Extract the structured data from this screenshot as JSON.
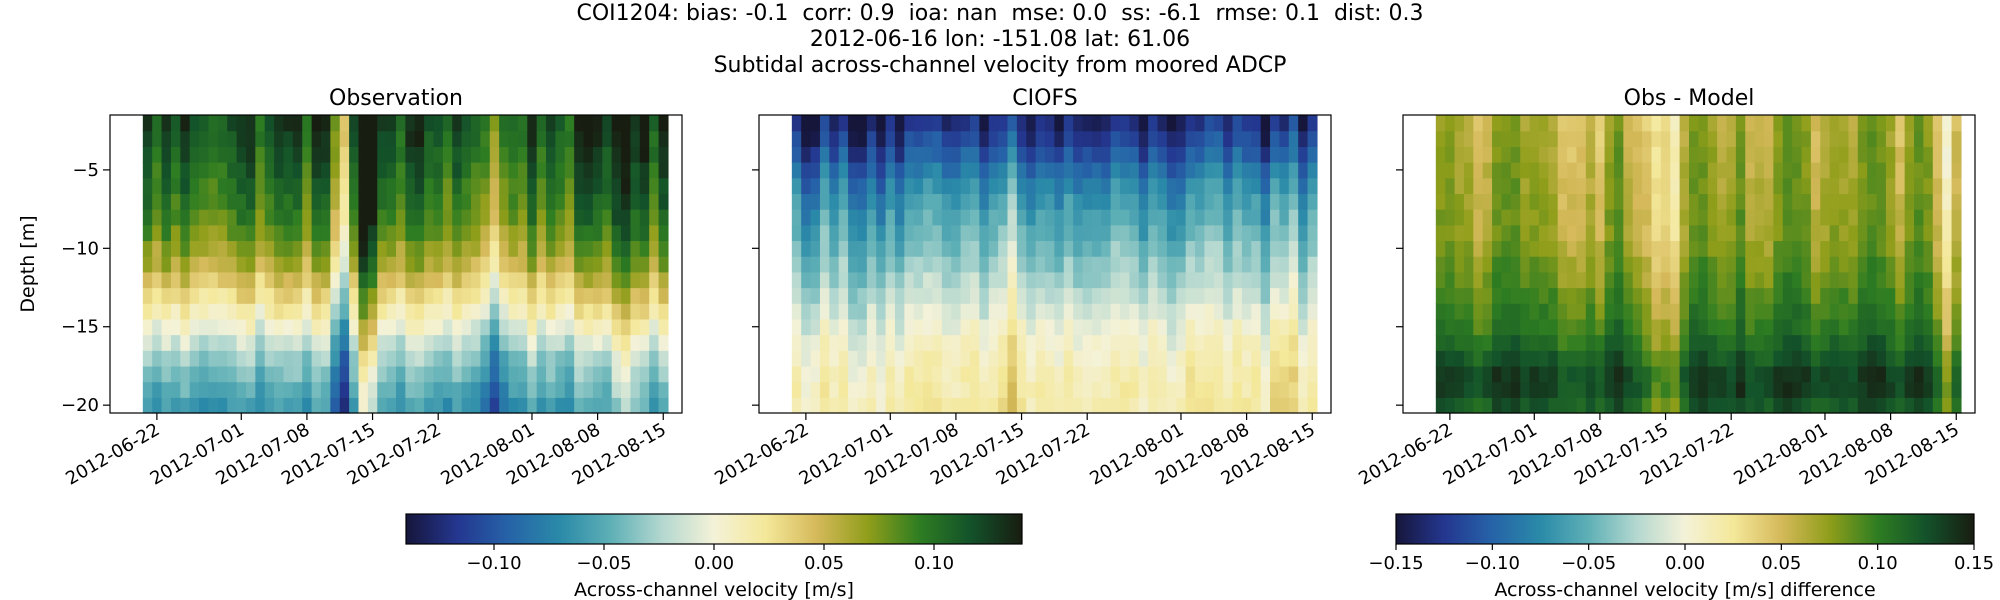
{
  "figure": {
    "title_line1": "COI1204: bias: -0.1  corr: 0.9  ioa: nan  mse: 0.0  ss: -6.1  rmse: 0.1  dist: 0.3",
    "title_line2": "2012-06-16 lon: -151.08 lat: 61.06",
    "title_line3": "Subtidal across-channel velocity from moored ADCP"
  },
  "colors": {
    "colormap": [
      "#16163b",
      "#24368f",
      "#2663a8",
      "#2a8aa8",
      "#5fb0b6",
      "#b4d8d0",
      "#f4f2d8",
      "#f4e89a",
      "#d5b95a",
      "#8f9e1a",
      "#2e7d22",
      "#13522a",
      "#181d11"
    ]
  },
  "chart_data": [
    {
      "type": "heatmap",
      "title": "Observation",
      "ylabel": "Depth [m]",
      "xlabel": "",
      "x_range": [
        "2012-06-17",
        "2012-08-17"
      ],
      "y_range": [
        -20.5,
        -1.5
      ],
      "xticks": [
        "2012-06-22",
        "2012-07-01",
        "2012-07-08",
        "2012-07-15",
        "2012-07-22",
        "2012-08-01",
        "2012-08-08",
        "2012-08-15"
      ],
      "yticks": [
        -5,
        -10,
        -15,
        -20
      ],
      "ytick_labels": [
        "−5",
        "−10",
        "−15",
        "−20"
      ],
      "depth_bins_m": [
        -20,
        -19,
        -18,
        -17,
        -16,
        -15,
        -14,
        -13,
        -12,
        -11,
        -10,
        -9,
        -8,
        -7,
        -6,
        -5,
        -4,
        -3,
        -2
      ],
      "time_step_days": 1,
      "depth_profile_m_per_s": [
        -0.06,
        -0.05,
        -0.04,
        -0.03,
        -0.015,
        0.0,
        0.015,
        0.03,
        0.045,
        0.06,
        0.07,
        0.08,
        0.09,
        0.095,
        0.1,
        0.105,
        0.11,
        0.115,
        0.12
      ],
      "features": [
        {
          "date": "2012-07-14",
          "delta_m_per_s": 0.06,
          "description": "dark vertical streak spanning the full depth"
        },
        {
          "date": "2012-07-12",
          "delta_m_per_s": -0.06,
          "description": "light yellow streak near surface"
        },
        {
          "date": "2012-07-28",
          "delta_m_per_s": -0.05,
          "description": "lighter band"
        },
        {
          "date": "2012-08-11",
          "delta_m_per_s": 0.05,
          "description": "darker streak"
        }
      ],
      "colorbar": "shared-left"
    },
    {
      "type": "heatmap",
      "title": "CIOFS",
      "ylabel": "",
      "xlabel": "",
      "x_range": [
        "2012-06-17",
        "2012-08-17"
      ],
      "y_range": [
        -20.5,
        -1.5
      ],
      "xticks": [
        "2012-06-22",
        "2012-07-01",
        "2012-07-08",
        "2012-07-15",
        "2012-07-22",
        "2012-08-01",
        "2012-08-08",
        "2012-08-15"
      ],
      "yticks": [
        -5,
        -10,
        -15,
        -20
      ],
      "ytick_labels": [],
      "depth_bins_m": [
        -20,
        -19,
        -18,
        -17,
        -16,
        -15,
        -14,
        -13,
        -12,
        -11,
        -10,
        -9,
        -8,
        -7,
        -6,
        -5,
        -4,
        -3,
        -2
      ],
      "time_step_days": 1,
      "depth_profile_m_per_s": [
        0.014,
        0.012,
        0.01,
        0.005,
        0.0,
        -0.006,
        -0.014,
        -0.022,
        -0.03,
        -0.038,
        -0.045,
        -0.052,
        -0.06,
        -0.068,
        -0.078,
        -0.09,
        -0.105,
        -0.118,
        -0.13
      ],
      "features": [
        {
          "date": "2012-07-14",
          "delta_m_per_s": 0.03,
          "description": "warm bulge rising to about -15 m"
        },
        {
          "date": "2012-08-12",
          "delta_m_per_s": 0.03,
          "description": "warm bulge rising to about -15 m"
        },
        {
          "date": "2012-08-02",
          "delta_m_per_s": 0.015,
          "description": "weak bulge near bottom"
        }
      ],
      "colorbar": "shared-left"
    },
    {
      "type": "heatmap",
      "title": "Obs - Model",
      "ylabel": "",
      "xlabel": "",
      "x_range": [
        "2012-06-17",
        "2012-08-17"
      ],
      "y_range": [
        -20.5,
        -1.5
      ],
      "xticks": [
        "2012-06-22",
        "2012-07-01",
        "2012-07-08",
        "2012-07-15",
        "2012-07-22",
        "2012-08-01",
        "2012-08-08",
        "2012-08-15"
      ],
      "yticks": [
        -5,
        -10,
        -15,
        -20
      ],
      "ytick_labels": [],
      "depth_bins_m": [
        -20,
        -19,
        -18,
        -17,
        -16,
        -15,
        -14,
        -13,
        -12,
        -11,
        -10,
        -9,
        -8,
        -7,
        -6,
        -5,
        -4,
        -3,
        -2
      ],
      "time_step_days": 1,
      "depth_profile_m_per_s": [
        0.12,
        0.13,
        0.13,
        0.12,
        0.11,
        0.1,
        0.095,
        0.09,
        0.085,
        0.08,
        0.075,
        0.07,
        0.07,
        0.068,
        0.066,
        0.065,
        0.064,
        0.062,
        0.06
      ],
      "features": [
        {
          "date": "2012-07-14",
          "delta_m_per_s": -0.04,
          "description": "yellow vertical streak"
        },
        {
          "date": "2012-07-16",
          "delta_m_per_s": -0.03,
          "description": "yellow vertical streak"
        },
        {
          "date": "2012-08-14",
          "delta_m_per_s": -0.04,
          "description": "yellow streak near surface"
        }
      ],
      "colorbar": "right"
    }
  ],
  "colorbars": [
    {
      "for": "Observation, CIOFS",
      "vmin": -0.14,
      "vmax": 0.14,
      "ticks": [
        -0.1,
        -0.05,
        0.0,
        0.05,
        0.1
      ],
      "tick_labels": [
        "−0.10",
        "−0.05",
        "0.00",
        "0.05",
        "0.10"
      ],
      "label": "Across-channel velocity [m/s]"
    },
    {
      "for": "Obs - Model",
      "vmin": -0.15,
      "vmax": 0.15,
      "ticks": [
        -0.15,
        -0.1,
        -0.05,
        0.0,
        0.05,
        0.1,
        0.15
      ],
      "tick_labels": [
        "−0.15",
        "−0.10",
        "−0.05",
        "0.00",
        "0.05",
        "0.10",
        "0.15"
      ],
      "label": "Across-channel velocity [m/s] difference"
    }
  ]
}
